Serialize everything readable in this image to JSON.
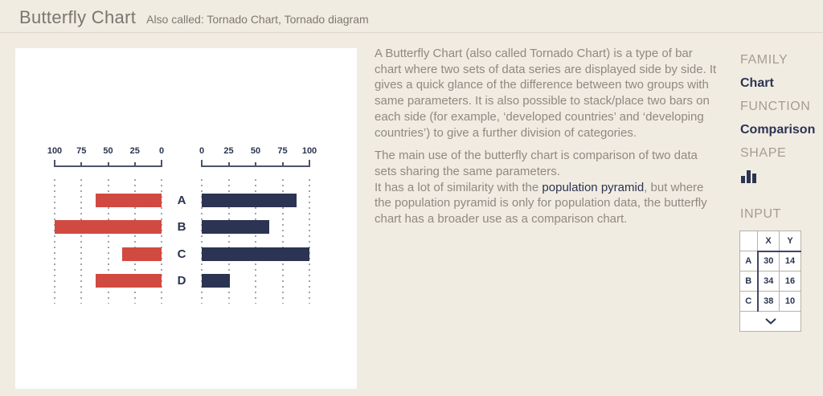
{
  "header": {
    "title": "Butterfly Chart",
    "subtitle": "Also called: Tornado Chart, Tornado diagram"
  },
  "description": {
    "paragraph1": "A Butterfly Chart (also called Tornado Chart) is a type of bar chart where two sets of data series are displayed side by side. It gives a quick glance of the difference between two groups with same parameters. It is also possible to stack/place two bars on each side (for example, ‘developed countries’ and ‘developing countries’) to give a further division of categories.",
    "paragraph2_line1": "The main use of the butterfly chart is comparison of two data sets sharing the same parameters.",
    "paragraph2_before_link": "It has a lot of similarity with the ",
    "link_text": "population pyramid",
    "paragraph2_after_link": ", but where the population pyramid is only for population data, the butterfly chart has a broader use as a comparison chart."
  },
  "sidebar": {
    "family_label": "FAMILY",
    "family_value": "Chart",
    "function_label": "FUNCTION",
    "function_value": "Comparison",
    "shape_label": "SHAPE",
    "shape_icon": "bar-chart-icon",
    "input_label": "INPUT",
    "input_table": {
      "headers": [
        "",
        "X",
        "Y"
      ],
      "rows": [
        {
          "label": "A",
          "x": "30",
          "y": "14"
        },
        {
          "label": "B",
          "x": "34",
          "y": "16"
        },
        {
          "label": "C",
          "x": "38",
          "y": "10"
        }
      ],
      "expand_icon": "chevron-down-icon"
    }
  },
  "colors": {
    "background": "#f1ece2",
    "card": "#ffffff",
    "red": "#d14a41",
    "navy": "#2b3452",
    "body_text": "#8f8982",
    "label_gray": "#a49d93"
  },
  "chart_data": {
    "type": "bar",
    "variant": "butterfly",
    "title": "",
    "categories": [
      "A",
      "B",
      "C",
      "D"
    ],
    "series": [
      {
        "name": "left",
        "color": "#d14a41",
        "values": [
          62,
          100,
          37,
          62
        ]
      },
      {
        "name": "right",
        "color": "#2b3452",
        "values": [
          88,
          63,
          100,
          26
        ]
      }
    ],
    "axis_ticks_left": [
      100,
      75,
      50,
      25,
      0
    ],
    "axis_ticks_right": [
      0,
      25,
      50,
      75,
      100
    ],
    "xlim": [
      0,
      100
    ],
    "grid": "dotted-vertical",
    "legend": "none"
  }
}
